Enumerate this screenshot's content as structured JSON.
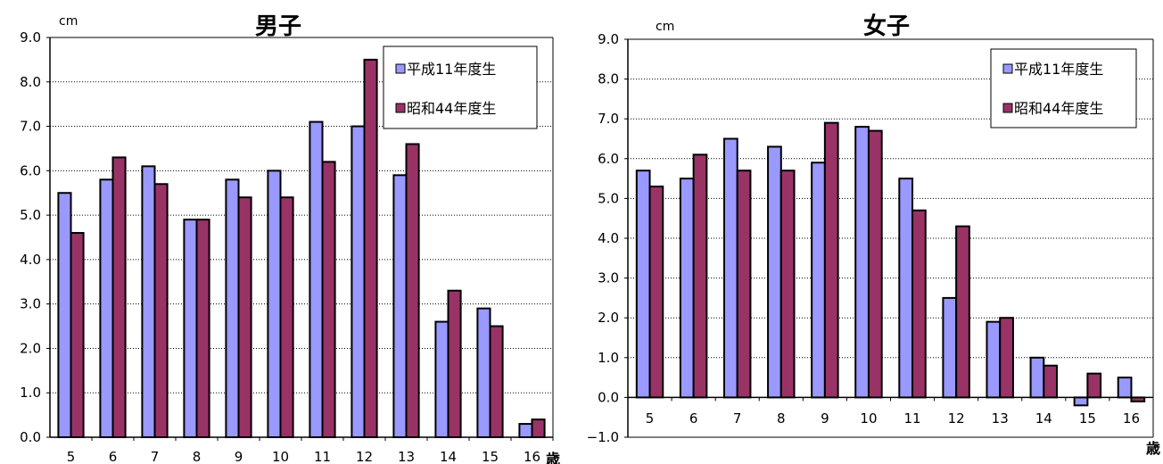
{
  "colors": {
    "series1": "#9999ff",
    "series2": "#993366"
  },
  "chart_data": [
    {
      "type": "bar",
      "title": "男子",
      "unit_label": "cm",
      "x_unit_label": "歳",
      "categories": [
        "5",
        "6",
        "7",
        "8",
        "9",
        "10",
        "11",
        "12",
        "13",
        "14",
        "15",
        "16"
      ],
      "series": [
        {
          "name": "平成11年度生",
          "values": [
            5.5,
            5.8,
            6.1,
            4.9,
            5.8,
            6.0,
            7.1,
            7.0,
            5.9,
            2.6,
            2.9,
            0.3
          ]
        },
        {
          "name": "昭和44年度生",
          "values": [
            4.6,
            6.3,
            5.7,
            4.9,
            5.4,
            5.4,
            6.2,
            8.5,
            6.6,
            3.3,
            2.5,
            0.4
          ]
        }
      ],
      "ylim": [
        0,
        9
      ],
      "yticks": [
        "0.0",
        "1.0",
        "2.0",
        "3.0",
        "4.0",
        "5.0",
        "6.0",
        "7.0",
        "8.0",
        "9.0"
      ],
      "grid": true,
      "legend": "top-right"
    },
    {
      "type": "bar",
      "title": "女子",
      "unit_label": "cm",
      "x_unit_label": "歳",
      "categories": [
        "5",
        "6",
        "7",
        "8",
        "9",
        "10",
        "11",
        "12",
        "13",
        "14",
        "15",
        "16"
      ],
      "series": [
        {
          "name": "平成11年度生",
          "values": [
            5.7,
            5.5,
            6.5,
            6.3,
            5.9,
            6.8,
            5.5,
            2.5,
            1.9,
            1.0,
            -0.2,
            0.5
          ]
        },
        {
          "name": "昭和44年度生",
          "values": [
            5.3,
            6.1,
            5.7,
            5.7,
            6.9,
            6.7,
            4.7,
            4.3,
            2.0,
            0.8,
            0.6,
            -0.1
          ]
        }
      ],
      "ylim": [
        -1,
        9
      ],
      "yticks": [
        "−1.0",
        "0.0",
        "1.0",
        "2.0",
        "3.0",
        "4.0",
        "5.0",
        "6.0",
        "7.0",
        "8.0",
        "9.0"
      ],
      "grid": true,
      "legend": "top-right"
    }
  ]
}
